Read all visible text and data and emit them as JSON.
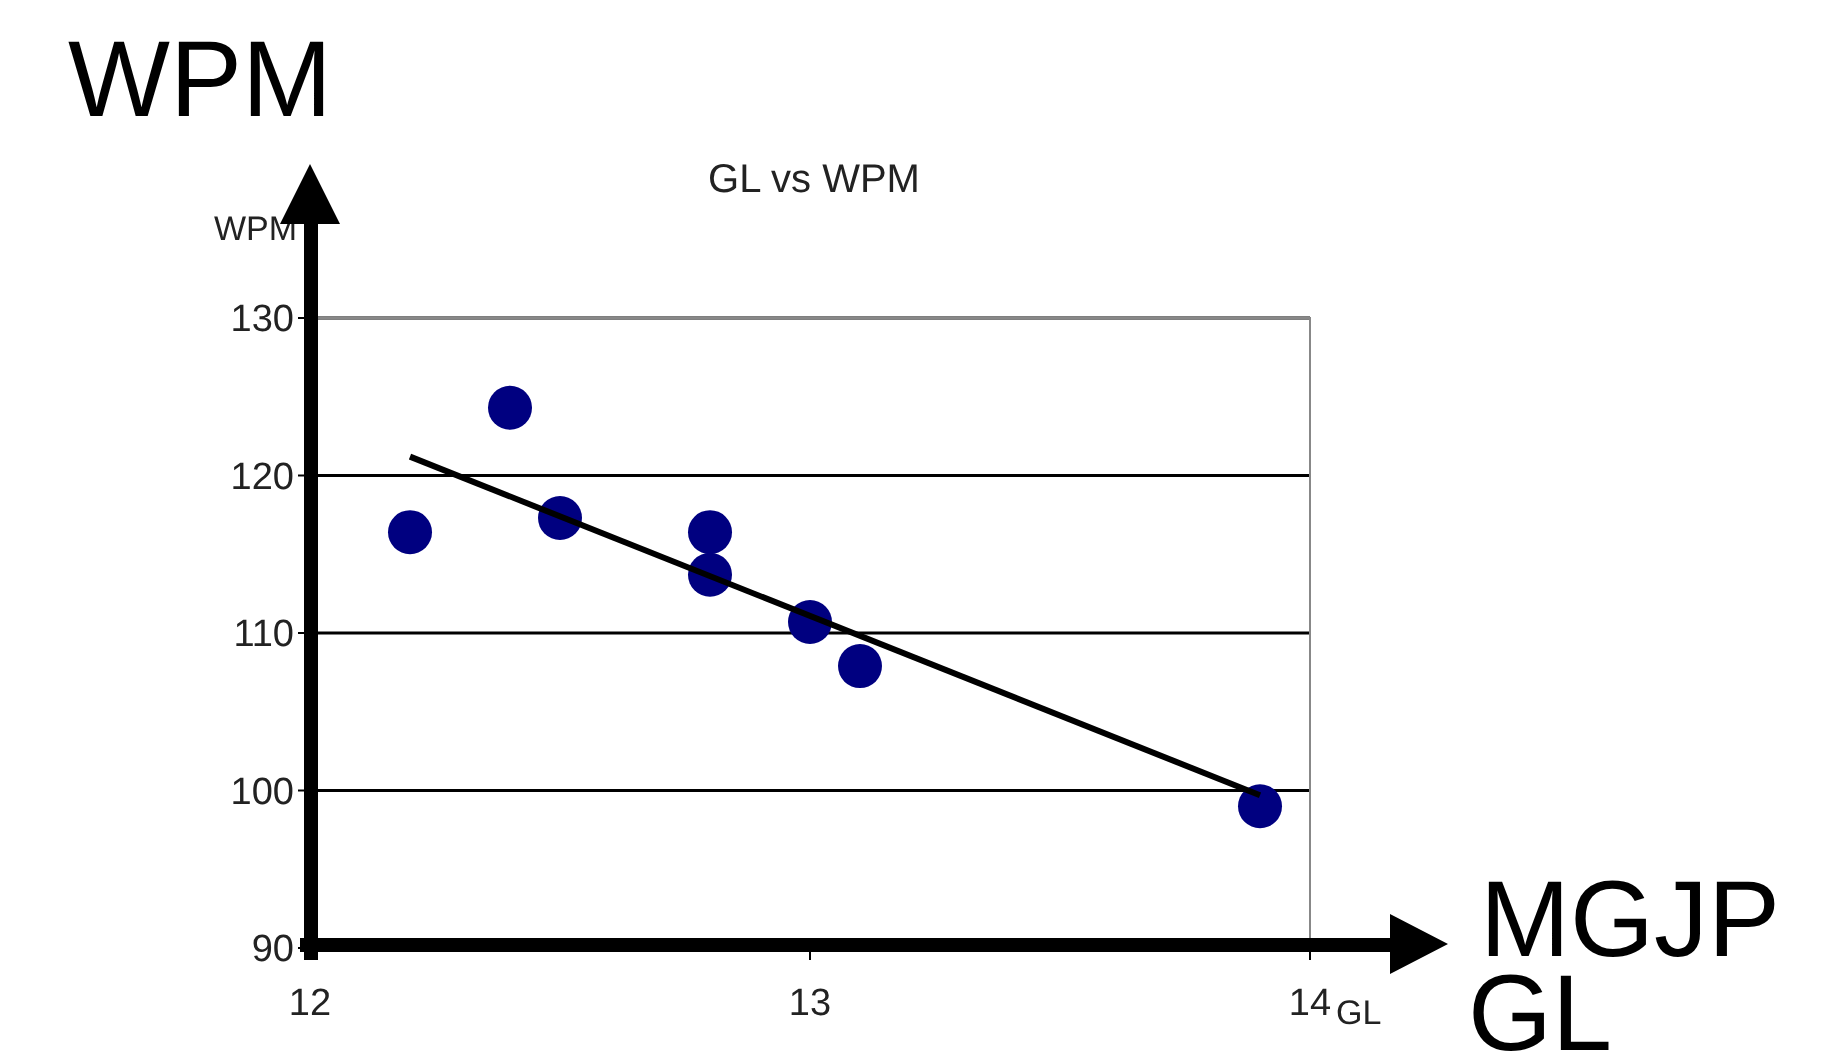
{
  "chart_data": {
    "type": "scatter",
    "title": "GL vs WPM",
    "xlabel": "GL",
    "ylabel": "WPM",
    "annotations": [
      "WPM",
      "MGJP",
      "GL"
    ],
    "series": [
      {
        "color": "#000080",
        "x": [
          12.2,
          12.4,
          12.5,
          12.8,
          12.8,
          13.0,
          13.1,
          13.9
        ],
        "values": [
          116.4,
          124.3,
          117.3,
          116.4,
          113.7,
          110.7,
          107.9,
          99.0
        ]
      },
      {
        "type": "line",
        "marker": "none",
        "color": "#000000",
        "x": [
          12.2,
          13.9
        ],
        "values": [
          121.2,
          99.7
        ]
      }
    ],
    "xlim": [
      12,
      14
    ],
    "xticks": [
      12,
      13,
      14
    ],
    "ylim": [
      90,
      130
    ],
    "yticks": [
      90,
      100,
      110,
      120,
      130
    ],
    "grid": "y",
    "marker": "circle",
    "line_style": "solid"
  }
}
